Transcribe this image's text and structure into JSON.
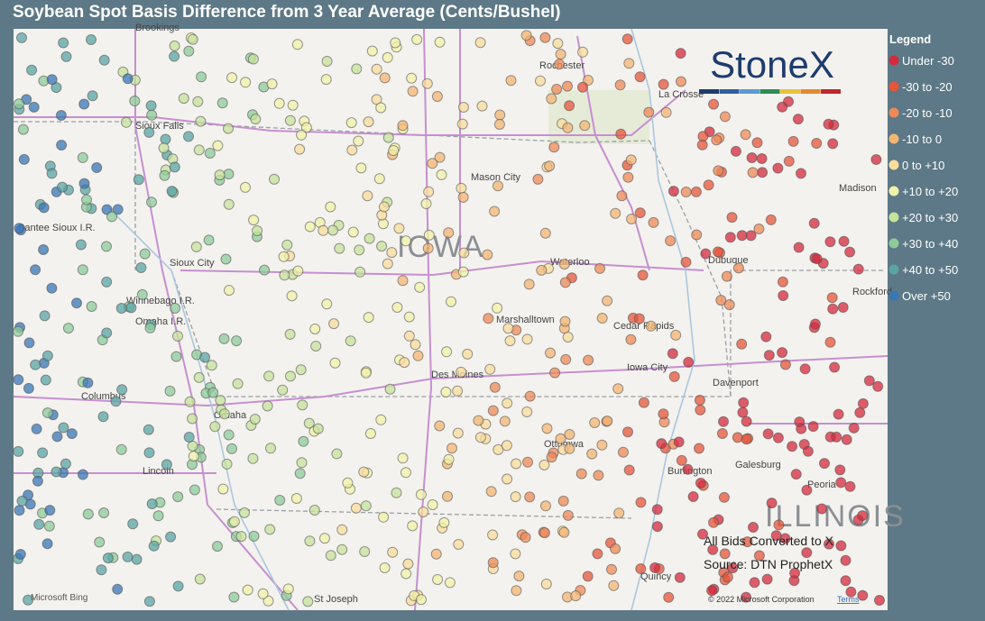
{
  "header": {
    "title": "Soybean Spot Basis Difference from 3 Year Average (Cents/Bushel)"
  },
  "legend": {
    "title": "Legend",
    "items": [
      {
        "label": "Under -30",
        "color": "#d42a3c"
      },
      {
        "label": "-30 to -20",
        "color": "#e5553b"
      },
      {
        "label": "-20 to -10",
        "color": "#ee8a57"
      },
      {
        "label": "-10 to 0",
        "color": "#f4b673"
      },
      {
        "label": "0 to +10",
        "color": "#fadc9c"
      },
      {
        "label": "+10 to +20",
        "color": "#f1f2a9"
      },
      {
        "label": "+20 to +30",
        "color": "#c6e29c"
      },
      {
        "label": "+30 to +40",
        "color": "#8dcb99"
      },
      {
        "label": "+40 to +50",
        "color": "#5aa4a4"
      },
      {
        "label": "Over +50",
        "color": "#3a76b6"
      }
    ]
  },
  "map": {
    "labels": [
      "Brookings",
      "Rochester",
      "La Crosse",
      "Sioux Falls",
      "Mason City",
      "Madison",
      "Santee Sioux I.R.",
      "IOWA",
      "Waterloo",
      "Dubuque",
      "Sioux City",
      "Winnebago I.R.",
      "Omaha I.R.",
      "Rockford",
      "Marshalltown",
      "Cedar Rapids",
      "Columbus",
      "Des Moines",
      "Iowa City",
      "Davenport",
      "Omaha",
      "Ottumwa",
      "Burlington",
      "Galesburg",
      "Lincoln",
      "Peoria",
      "ILLINOIS",
      "St Joseph",
      "Quincy"
    ],
    "logo": "StoneX",
    "notes": [
      "All Bids Converted to X",
      "Source: DTN ProphetX"
    ],
    "bing": "Microsoft Bing",
    "copyright": "© 2022 Microsoft Corporation",
    "terms": "Terms"
  }
}
